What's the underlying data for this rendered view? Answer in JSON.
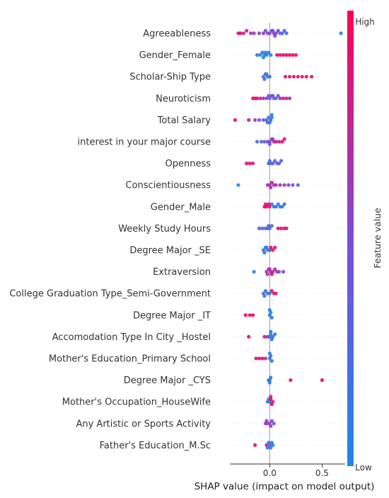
{
  "chart_data": {
    "type": "scatter",
    "subtype": "shap-beeswarm",
    "title": "",
    "xlabel": "SHAP value (impact on model output)",
    "xlim": [
      -0.38,
      0.72
    ],
    "xticks": [
      0.0,
      0.5
    ],
    "xtick_labels": [
      "0.0",
      "0.5"
    ],
    "colorbar": {
      "title": "Feature value",
      "high_label": "High",
      "low_label": "Low",
      "low_color": "#1e88e5",
      "high_color": "#ff0052"
    },
    "features": [
      {
        "name": "Agreeableness",
        "points": [
          [
            -0.3,
            0.8
          ],
          [
            -0.28,
            0.9
          ],
          [
            -0.25,
            0.85
          ],
          [
            -0.22,
            0.7
          ],
          [
            -0.18,
            0.65
          ],
          [
            -0.15,
            0.6
          ],
          [
            -0.1,
            0.55
          ],
          [
            -0.06,
            0.6
          ],
          [
            -0.02,
            0.5
          ],
          [
            0.0,
            0.55
          ],
          [
            0.02,
            0.5
          ],
          [
            0.04,
            0.6
          ],
          [
            0.06,
            0.55
          ],
          [
            0.08,
            0.5
          ],
          [
            0.1,
            0.4
          ],
          [
            0.12,
            0.35
          ],
          [
            0.14,
            0.3
          ],
          [
            0.16,
            0.2
          ],
          [
            0.68,
            0.1
          ],
          [
            0.03,
            0.5
          ],
          [
            0.05,
            0.45
          ],
          [
            -0.04,
            0.5
          ]
        ]
      },
      {
        "name": "Gender_Female",
        "points": [
          [
            -0.12,
            0.1
          ],
          [
            -0.09,
            0.05
          ],
          [
            -0.07,
            0.1
          ],
          [
            -0.05,
            0.05
          ],
          [
            -0.03,
            0.1
          ],
          [
            -0.01,
            0.05
          ],
          [
            0.01,
            0.0
          ],
          [
            -0.04,
            0.1
          ],
          [
            -0.06,
            0.05
          ],
          [
            0.07,
            0.9
          ],
          [
            0.1,
            0.95
          ],
          [
            0.13,
            0.9
          ],
          [
            0.16,
            0.9
          ],
          [
            0.19,
            0.95
          ],
          [
            0.22,
            0.9
          ],
          [
            0.25,
            0.85
          ]
        ]
      },
      {
        "name": "Scholar-Ship Type",
        "points": [
          [
            -0.06,
            0.2
          ],
          [
            -0.04,
            0.15
          ],
          [
            -0.02,
            0.1
          ],
          [
            0.0,
            0.2
          ],
          [
            -0.03,
            0.1
          ],
          [
            -0.05,
            0.2
          ],
          [
            0.15,
            0.85
          ],
          [
            0.19,
            0.9
          ],
          [
            0.23,
            0.85
          ],
          [
            0.27,
            0.9
          ],
          [
            0.31,
            0.85
          ],
          [
            0.35,
            0.9
          ],
          [
            0.4,
            0.85
          ]
        ]
      },
      {
        "name": "Neuroticism",
        "points": [
          [
            -0.16,
            0.95
          ],
          [
            -0.14,
            0.9
          ],
          [
            -0.12,
            0.85
          ],
          [
            -0.09,
            0.8
          ],
          [
            -0.06,
            0.7
          ],
          [
            -0.03,
            0.5
          ],
          [
            0.0,
            0.45
          ],
          [
            0.02,
            0.4
          ],
          [
            0.04,
            0.35
          ],
          [
            0.06,
            0.3
          ],
          [
            0.08,
            0.4
          ],
          [
            0.1,
            0.7
          ],
          [
            0.13,
            0.8
          ],
          [
            0.16,
            0.75
          ],
          [
            0.19,
            0.7
          ],
          [
            -0.01,
            0.5
          ],
          [
            0.03,
            0.5
          ]
        ]
      },
      {
        "name": "Total Salary",
        "points": [
          [
            -0.33,
            0.9
          ],
          [
            -0.2,
            0.75
          ],
          [
            -0.14,
            0.6
          ],
          [
            -0.1,
            0.5
          ],
          [
            -0.06,
            0.4
          ],
          [
            -0.03,
            0.3
          ],
          [
            -0.01,
            0.2
          ],
          [
            0.01,
            0.15
          ],
          [
            0.02,
            0.1
          ],
          [
            0.0,
            0.1
          ],
          [
            0.02,
            0.05
          ],
          [
            -0.02,
            0.2
          ]
        ]
      },
      {
        "name": "interest in your major course",
        "points": [
          [
            -0.12,
            0.2
          ],
          [
            -0.08,
            0.3
          ],
          [
            -0.05,
            0.35
          ],
          [
            -0.02,
            0.4
          ],
          [
            0.0,
            0.5
          ],
          [
            0.02,
            0.6
          ],
          [
            0.04,
            0.7
          ],
          [
            0.06,
            0.8
          ],
          [
            0.09,
            0.85
          ],
          [
            0.12,
            0.9
          ],
          [
            0.14,
            0.85
          ],
          [
            0.0,
            0.45
          ],
          [
            0.03,
            0.55
          ]
        ]
      },
      {
        "name": "Openness",
        "points": [
          [
            -0.22,
            0.9
          ],
          [
            -0.19,
            0.85
          ],
          [
            -0.16,
            0.8
          ],
          [
            -0.01,
            0.3
          ],
          [
            0.01,
            0.25
          ],
          [
            0.03,
            0.3
          ],
          [
            0.05,
            0.35
          ],
          [
            0.07,
            0.3
          ],
          [
            0.09,
            0.35
          ],
          [
            0.11,
            0.4
          ],
          [
            0.0,
            0.2
          ]
        ]
      },
      {
        "name": "Conscientiousness",
        "points": [
          [
            -0.3,
            0.05
          ],
          [
            -0.02,
            0.6
          ],
          [
            0.0,
            0.65
          ],
          [
            0.02,
            0.7
          ],
          [
            0.04,
            0.7
          ],
          [
            0.06,
            0.65
          ],
          [
            0.1,
            0.7
          ],
          [
            0.14,
            0.65
          ],
          [
            0.18,
            0.6
          ],
          [
            0.22,
            0.4
          ],
          [
            0.27,
            0.3
          ],
          [
            0.01,
            0.65
          ]
        ]
      },
      {
        "name": "Gender_Male",
        "points": [
          [
            -0.05,
            0.9
          ],
          [
            -0.03,
            0.95
          ],
          [
            -0.01,
            0.9
          ],
          [
            0.0,
            0.85
          ],
          [
            -0.04,
            0.9
          ],
          [
            0.02,
            0.2
          ],
          [
            0.04,
            0.15
          ],
          [
            0.06,
            0.1
          ],
          [
            0.08,
            0.15
          ],
          [
            0.1,
            0.1
          ],
          [
            0.12,
            0.15
          ],
          [
            0.14,
            0.1
          ]
        ]
      },
      {
        "name": "Weekly Study Hours",
        "points": [
          [
            -0.1,
            0.3
          ],
          [
            -0.07,
            0.25
          ],
          [
            -0.04,
            0.3
          ],
          [
            -0.02,
            0.35
          ],
          [
            0.0,
            0.3
          ],
          [
            0.02,
            0.25
          ],
          [
            -0.01,
            0.35
          ],
          [
            0.08,
            0.85
          ],
          [
            0.11,
            0.9
          ],
          [
            0.14,
            0.85
          ],
          [
            0.16,
            0.8
          ]
        ]
      },
      {
        "name": "Degree Major _SE",
        "points": [
          [
            -0.06,
            0.2
          ],
          [
            -0.04,
            0.15
          ],
          [
            -0.02,
            0.1
          ],
          [
            0.0,
            0.15
          ],
          [
            -0.05,
            0.2
          ],
          [
            -0.03,
            0.1
          ],
          [
            0.01,
            0.9
          ],
          [
            0.03,
            0.85
          ],
          [
            0.05,
            0.9
          ]
        ]
      },
      {
        "name": "Extraversion",
        "points": [
          [
            -0.15,
            0.05
          ],
          [
            -0.03,
            0.6
          ],
          [
            -0.01,
            0.7
          ],
          [
            0.01,
            0.8
          ],
          [
            0.03,
            0.75
          ],
          [
            0.05,
            0.7
          ],
          [
            0.07,
            0.6
          ],
          [
            0.09,
            0.5
          ],
          [
            0.13,
            0.4
          ],
          [
            0.0,
            0.7
          ],
          [
            0.02,
            0.8
          ],
          [
            -0.02,
            0.65
          ]
        ]
      },
      {
        "name": "College Graduation Type_Semi-Government",
        "points": [
          [
            -0.06,
            0.2
          ],
          [
            -0.04,
            0.15
          ],
          [
            -0.02,
            0.2
          ],
          [
            0.0,
            0.15
          ],
          [
            -0.05,
            0.1
          ],
          [
            0.02,
            0.85
          ],
          [
            0.04,
            0.9
          ],
          [
            0.06,
            0.85
          ]
        ]
      },
      {
        "name": "Degree Major _IT",
        "points": [
          [
            -0.23,
            0.95
          ],
          [
            -0.19,
            0.9
          ],
          [
            -0.16,
            0.95
          ],
          [
            0.0,
            0.1
          ],
          [
            0.01,
            0.05
          ],
          [
            0.02,
            0.1
          ],
          [
            0.0,
            0.05
          ]
        ]
      },
      {
        "name": "Accomodation Type In City _Hostel",
        "points": [
          [
            -0.2,
            0.9
          ],
          [
            -0.05,
            0.8
          ],
          [
            -0.02,
            0.85
          ],
          [
            0.0,
            0.1
          ],
          [
            0.01,
            0.05
          ],
          [
            0.02,
            0.1
          ],
          [
            0.03,
            0.15
          ],
          [
            0.05,
            0.1
          ],
          [
            0.01,
            0.1
          ]
        ]
      },
      {
        "name": "Mother's Education_Primary School",
        "points": [
          [
            -0.13,
            0.85
          ],
          [
            -0.1,
            0.9
          ],
          [
            -0.07,
            0.85
          ],
          [
            -0.04,
            0.8
          ],
          [
            0.0,
            0.15
          ],
          [
            0.01,
            0.1
          ],
          [
            0.02,
            0.05
          ],
          [
            0.0,
            0.1
          ]
        ]
      },
      {
        "name": "Degree Major _CYS",
        "points": [
          [
            0.0,
            0.05
          ],
          [
            -0.01,
            0.1
          ],
          [
            0.01,
            0.05
          ],
          [
            0.0,
            0.1
          ],
          [
            0.2,
            0.9
          ],
          [
            0.5,
            0.9
          ]
        ]
      },
      {
        "name": "Mother's Occupation_HouseWife",
        "points": [
          [
            -0.02,
            0.15
          ],
          [
            -0.01,
            0.1
          ],
          [
            0.0,
            0.15
          ],
          [
            0.01,
            0.85
          ],
          [
            0.02,
            0.9
          ],
          [
            0.03,
            0.85
          ],
          [
            0.01,
            0.9
          ]
        ]
      },
      {
        "name": "Any Artistic or Sports Activity",
        "points": [
          [
            -0.04,
            0.6
          ],
          [
            -0.02,
            0.55
          ],
          [
            0.0,
            0.6
          ],
          [
            0.02,
            0.5
          ],
          [
            0.04,
            0.45
          ],
          [
            0.01,
            0.55
          ],
          [
            -0.03,
            0.6
          ]
        ]
      },
      {
        "name": "Father's Education_M.Sc",
        "points": [
          [
            -0.14,
            0.9
          ],
          [
            -0.03,
            0.8
          ],
          [
            -0.01,
            0.2
          ],
          [
            0.0,
            0.15
          ],
          [
            0.02,
            0.1
          ],
          [
            0.03,
            0.15
          ],
          [
            0.01,
            0.1
          ],
          [
            -0.02,
            0.2
          ]
        ]
      }
    ]
  }
}
